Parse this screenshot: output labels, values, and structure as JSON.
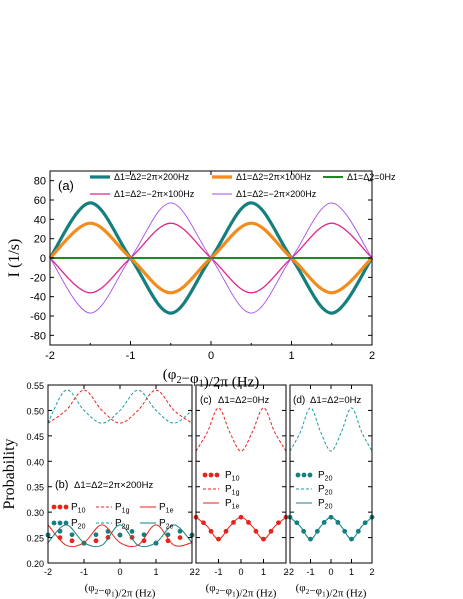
{
  "chart_data": [
    {
      "panel": "(a)",
      "type": "line",
      "xlabel": "(φ2−φ1)/2π (Hz)",
      "ylabel": "I (1/s)",
      "xlim": [
        -2,
        2
      ],
      "ylim": [
        -90,
        90
      ],
      "xticks": [
        "-2",
        "-1",
        "0",
        "1",
        "2"
      ],
      "yticks": [
        "-80",
        "-60",
        "-40",
        "-20",
        "0",
        "20",
        "40",
        "60",
        "80"
      ],
      "x": [
        -2,
        -1.5,
        -1,
        -0.5,
        0,
        0.5,
        1,
        1.5,
        2
      ],
      "series": [
        {
          "name": "Δ1=Δ2=2π×200Hz",
          "color": "#137f7f",
          "line": "thick",
          "values": [
            0,
            57,
            0,
            -57,
            0,
            57,
            0,
            -57,
            0
          ]
        },
        {
          "name": "Δ1=Δ2=2π×100Hz",
          "color": "#f28c1c",
          "line": "thick",
          "values": [
            0,
            36,
            0,
            -36,
            0,
            36,
            0,
            -36,
            0
          ]
        },
        {
          "name": "Δ1=Δ2=0Hz",
          "color": "#1f8a1f",
          "line": "medium",
          "values": [
            0,
            0,
            0,
            0,
            0,
            0,
            0,
            0,
            0
          ]
        },
        {
          "name": "Δ1=Δ2=−2π×100Hz",
          "color": "#e0288c",
          "line": "normal",
          "values": [
            0,
            -36,
            0,
            36,
            0,
            -36,
            0,
            36,
            0
          ]
        },
        {
          "name": "Δ1=Δ2=−2π×200Hz",
          "color": "#a64de8",
          "line": "thin",
          "values": [
            0,
            -57,
            0,
            57,
            0,
            -57,
            0,
            57,
            0
          ]
        }
      ],
      "legend": "top, inside, three columns"
    },
    {
      "panel": "(b)",
      "type": "line",
      "annotation": "Δ1=Δ2=2π×200Hz",
      "xlabel": "(φ2−φ1)/2π (Hz)",
      "ylabel": "Probability",
      "xlim": [
        -2,
        2
      ],
      "ylim": [
        0.2,
        0.55
      ],
      "xticks": [
        "-2",
        "-1",
        "0",
        "1",
        "2"
      ],
      "yticks": [
        "0.20",
        "0.25",
        "0.30",
        "0.35",
        "0.40",
        "0.45",
        "0.50",
        "0.55"
      ],
      "x": [
        -2,
        -1.5,
        -1,
        -0.5,
        0,
        0.5,
        1,
        1.5,
        2
      ],
      "series": [
        {
          "name": "P10",
          "color": "#e8231c",
          "style": "dots",
          "values": [
            0.255,
            0.247,
            0.239,
            0.247,
            0.255,
            0.247,
            0.239,
            0.247,
            0.255
          ]
        },
        {
          "name": "P20",
          "color": "#137f7f",
          "style": "dots",
          "values": [
            0.255,
            0.263,
            0.239,
            0.263,
            0.255,
            0.263,
            0.239,
            0.263,
            0.255
          ]
        },
        {
          "name": "P1g",
          "color": "#e8231c",
          "style": "dashed",
          "values": [
            0.475,
            0.5,
            0.54,
            0.5,
            0.475,
            0.5,
            0.54,
            0.5,
            0.475
          ]
        },
        {
          "name": "P2g",
          "color": "#1a9e9e",
          "style": "dashed",
          "values": [
            0.475,
            0.54,
            0.5,
            0.475,
            0.5,
            0.54,
            0.5,
            0.475,
            0.5
          ]
        },
        {
          "name": "P1e",
          "color": "#e8231c",
          "style": "solid",
          "values": [
            0.275,
            0.235,
            0.24,
            0.275,
            0.24,
            0.235,
            0.275,
            0.235,
            0.24
          ]
        },
        {
          "name": "P2e",
          "color": "#137f7f",
          "style": "solid",
          "values": [
            0.24,
            0.275,
            0.24,
            0.235,
            0.275,
            0.235,
            0.24,
            0.275,
            0.24
          ]
        }
      ],
      "legend": "middle-left, three columns"
    },
    {
      "panel": "(c)",
      "type": "line",
      "annotation": "Δ1=Δ2=0Hz",
      "xlabel": "(φ2−φ1)/2π (Hz)",
      "ylim": [
        0.2,
        0.55
      ],
      "xlim": [
        -2,
        2
      ],
      "xticks": [
        "-2",
        "-1",
        "0",
        "1",
        "2"
      ],
      "x": [
        -2,
        -1.5,
        -1,
        -0.5,
        0,
        0.5,
        1,
        1.5,
        2
      ],
      "series": [
        {
          "name": "P10",
          "color": "#e8231c",
          "style": "dots",
          "values": [
            0.29,
            0.272,
            0.247,
            0.272,
            0.29,
            0.272,
            0.247,
            0.272,
            0.29
          ]
        },
        {
          "name": "P1g",
          "color": "#e8231c",
          "style": "dashed",
          "values": [
            0.42,
            0.457,
            0.505,
            0.457,
            0.42,
            0.457,
            0.505,
            0.457,
            0.42
          ]
        },
        {
          "name": "P1e",
          "color": "#e8231c",
          "style": "solid",
          "values": [
            0.29,
            0.272,
            0.247,
            0.272,
            0.29,
            0.272,
            0.247,
            0.272,
            0.29
          ]
        }
      ],
      "legend": "middle, single column"
    },
    {
      "panel": "(d)",
      "type": "line",
      "annotation": "Δ1=Δ2=0Hz",
      "xlabel": "(φ2−φ1)/2π (Hz)",
      "ylim": [
        0.2,
        0.55
      ],
      "xlim": [
        -2,
        2
      ],
      "xticks": [
        "-2",
        "-1",
        "0",
        "1",
        "2"
      ],
      "x": [
        -2,
        -1.5,
        -1,
        -0.5,
        0,
        0.5,
        1,
        1.5,
        2
      ],
      "series": [
        {
          "name": "P20",
          "color": "#137f7f",
          "style": "dots",
          "values": [
            0.29,
            0.272,
            0.247,
            0.272,
            0.29,
            0.272,
            0.247,
            0.272,
            0.29
          ]
        },
        {
          "name": "P20",
          "color": "#1a9e9e",
          "style": "dashed",
          "values": [
            0.42,
            0.457,
            0.505,
            0.457,
            0.42,
            0.457,
            0.505,
            0.457,
            0.42
          ]
        },
        {
          "name": "P20",
          "color": "#137f7f",
          "style": "solid",
          "values": [
            0.29,
            0.272,
            0.247,
            0.272,
            0.29,
            0.272,
            0.247,
            0.272,
            0.29
          ]
        }
      ],
      "legend": "middle, single column"
    }
  ]
}
